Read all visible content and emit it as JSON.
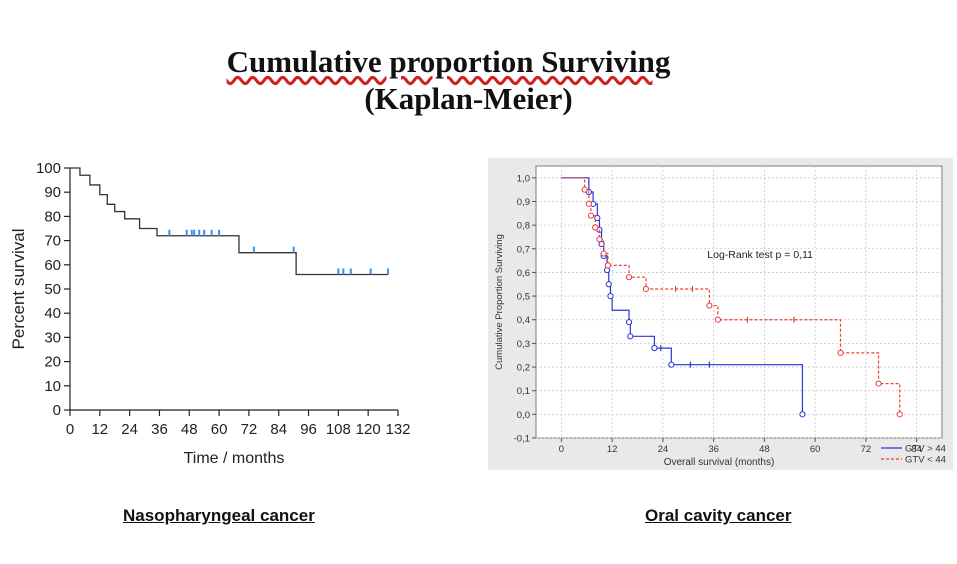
{
  "title": {
    "line1": "Cumulative proportion Surviving",
    "line2": "(Kaplan-Meier)"
  },
  "captions": {
    "left": "Nasopharyngeal cancer",
    "right": "Oral cavity cancer"
  },
  "chart_data": [
    {
      "type": "line",
      "step": true,
      "title": "",
      "xlabel": "Time / months",
      "ylabel": "Percent survival",
      "xlim": [
        0,
        132
      ],
      "ylim": [
        0,
        100
      ],
      "xticks": [
        "0",
        "12",
        "24",
        "36",
        "48",
        "60",
        "72",
        "84",
        "96",
        "108",
        "120",
        "132"
      ],
      "yticks": [
        "0",
        "10",
        "20",
        "30",
        "40",
        "50",
        "60",
        "70",
        "80",
        "90",
        "100"
      ],
      "grid": false,
      "series": [
        {
          "color": "#333333",
          "censor_color": "#3a8fe6",
          "steps": [
            [
              0,
              100
            ],
            [
              4,
              97
            ],
            [
              8,
              93
            ],
            [
              12,
              89
            ],
            [
              15,
              85
            ],
            [
              18,
              82
            ],
            [
              22,
              79
            ],
            [
              28,
              75
            ],
            [
              35,
              72
            ],
            [
              45,
              72
            ],
            [
              55,
              72
            ],
            [
              68,
              65
            ],
            [
              80,
              65
            ],
            [
              91,
              56
            ],
            [
              128,
              56
            ]
          ],
          "censored": [
            [
              40,
              72
            ],
            [
              47,
              72
            ],
            [
              49,
              72
            ],
            [
              50,
              72
            ],
            [
              52,
              72
            ],
            [
              54,
              72
            ],
            [
              57,
              72
            ],
            [
              60,
              72
            ],
            [
              74,
              65
            ],
            [
              90,
              65
            ],
            [
              108,
              56
            ],
            [
              110,
              56
            ],
            [
              113,
              56
            ],
            [
              121,
              56
            ],
            [
              128,
              56
            ]
          ]
        }
      ]
    },
    {
      "type": "line",
      "step": true,
      "title": "",
      "xlabel": "Overall survival (months)",
      "ylabel": "Cumulative Proportion Surviving",
      "xlim": [
        -6,
        90
      ],
      "ylim": [
        -0.1,
        1.05
      ],
      "xticks": [
        "0",
        "12",
        "24",
        "36",
        "48",
        "60",
        "72",
        "84"
      ],
      "yticks": [
        "-0,1",
        "0,0",
        "0,1",
        "0,2",
        "0,3",
        "0,4",
        "0,5",
        "0,6",
        "0,7",
        "0,8",
        "0,9",
        "1,0"
      ],
      "grid": true,
      "legend": "bottom-right",
      "annotation": "Log-Rank test p = 0,11",
      "series": [
        {
          "name": "GTV > 44",
          "color": "#2b35d8",
          "dash": false,
          "steps": [
            [
              0,
              1.0
            ],
            [
              6.5,
              1.0
            ],
            [
              6.5,
              0.94
            ],
            [
              7.5,
              0.94
            ],
            [
              7.5,
              0.89
            ],
            [
              8.5,
              0.89
            ],
            [
              8.5,
              0.83
            ],
            [
              9,
              0.83
            ],
            [
              9,
              0.78
            ],
            [
              9.5,
              0.78
            ],
            [
              9.5,
              0.72
            ],
            [
              10,
              0.72
            ],
            [
              10,
              0.67
            ],
            [
              10.8,
              0.67
            ],
            [
              10.8,
              0.61
            ],
            [
              11.2,
              0.61
            ],
            [
              11.2,
              0.55
            ],
            [
              11.6,
              0.55
            ],
            [
              11.6,
              0.5
            ],
            [
              12,
              0.5
            ],
            [
              12,
              0.44
            ],
            [
              16,
              0.44
            ],
            [
              16,
              0.39
            ],
            [
              16.3,
              0.39
            ],
            [
              16.3,
              0.33
            ],
            [
              22,
              0.33
            ],
            [
              22,
              0.28
            ],
            [
              26,
              0.28
            ],
            [
              26,
              0.21
            ],
            [
              57,
              0.21
            ],
            [
              57,
              0.0
            ]
          ],
          "events": [
            [
              6.5,
              0.94
            ],
            [
              7.5,
              0.89
            ],
            [
              8.5,
              0.83
            ],
            [
              9,
              0.78
            ],
            [
              9.5,
              0.72
            ],
            [
              10,
              0.67
            ],
            [
              10.8,
              0.61
            ],
            [
              11.2,
              0.55
            ],
            [
              11.6,
              0.5
            ],
            [
              16,
              0.39
            ],
            [
              16.3,
              0.33
            ],
            [
              22,
              0.28
            ],
            [
              26,
              0.21
            ],
            [
              57,
              0.0
            ]
          ],
          "censored": [
            [
              23.5,
              0.28
            ],
            [
              30.5,
              0.21
            ],
            [
              35,
              0.21
            ]
          ]
        },
        {
          "name": "GTV < 44",
          "color": "#e8433a",
          "dash": true,
          "steps": [
            [
              0,
              1.0
            ],
            [
              5.5,
              1.0
            ],
            [
              5.5,
              0.95
            ],
            [
              6.5,
              0.95
            ],
            [
              6.5,
              0.89
            ],
            [
              7,
              0.89
            ],
            [
              7,
              0.84
            ],
            [
              8,
              0.84
            ],
            [
              8,
              0.79
            ],
            [
              9,
              0.79
            ],
            [
              9,
              0.74
            ],
            [
              10,
              0.74
            ],
            [
              10,
              0.68
            ],
            [
              11,
              0.68
            ],
            [
              11,
              0.63
            ],
            [
              16,
              0.63
            ],
            [
              16,
              0.58
            ],
            [
              20,
              0.58
            ],
            [
              20,
              0.53
            ],
            [
              35,
              0.53
            ],
            [
              35,
              0.46
            ],
            [
              37,
              0.46
            ],
            [
              37,
              0.4
            ],
            [
              66,
              0.4
            ],
            [
              66,
              0.26
            ],
            [
              75,
              0.26
            ],
            [
              75,
              0.13
            ],
            [
              80,
              0.13
            ],
            [
              80,
              0.0
            ]
          ],
          "events": [
            [
              5.5,
              0.95
            ],
            [
              6.5,
              0.89
            ],
            [
              7,
              0.84
            ],
            [
              8,
              0.79
            ],
            [
              9,
              0.74
            ],
            [
              10,
              0.68
            ],
            [
              11,
              0.63
            ],
            [
              16,
              0.58
            ],
            [
              20,
              0.53
            ],
            [
              35,
              0.46
            ],
            [
              37,
              0.4
            ],
            [
              66,
              0.26
            ],
            [
              75,
              0.13
            ],
            [
              80,
              0.0
            ]
          ],
          "censored": [
            [
              27,
              0.53
            ],
            [
              31,
              0.53
            ],
            [
              44,
              0.4
            ],
            [
              55,
              0.4
            ]
          ]
        }
      ]
    }
  ]
}
